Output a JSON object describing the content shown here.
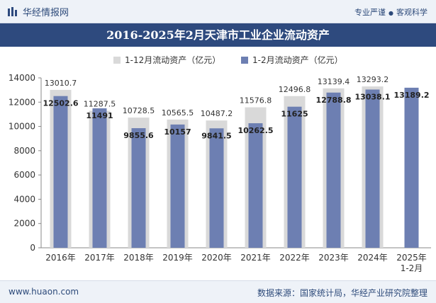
{
  "header": {
    "brand": "华经情报网",
    "tagline_left": "专业严谨",
    "tagline_right": "客观科学"
  },
  "title": "2016-2025年2月天津市工业企业流动资产",
  "footer": {
    "url": "www.huaon.com",
    "source": "数据来源：国家统计局，华经产业研究院整理"
  },
  "colors": {
    "header_bg": "#eef2f8",
    "title_bg": "#2e4a7e",
    "series_1": "#d9d9d9",
    "series_2": "#6d7fb2"
  },
  "chart_data": {
    "type": "bar",
    "categories": [
      "2016年",
      "2017年",
      "2018年",
      "2019年",
      "2020年",
      "2021年",
      "2022年",
      "2023年",
      "2024年",
      "2025年\n1-2月"
    ],
    "series": [
      {
        "name": "1-12月流动资产（亿元）",
        "values": [
          13010.7,
          11287.5,
          10728.5,
          10565.5,
          10487.2,
          11576.8,
          12496.8,
          13139.4,
          13293.2,
          null
        ],
        "labels": [
          "13010.7",
          "11287.5",
          "10728.5",
          "10565.5",
          "10487.2",
          "11576.8",
          "12496.8",
          "13139.4",
          "13293.2",
          ""
        ]
      },
      {
        "name": "1-2月流动资产（亿元）",
        "values": [
          12502.6,
          11491,
          9855.6,
          10157,
          9841.5,
          10262.5,
          11625,
          12788.8,
          13038.1,
          13189.2
        ],
        "labels": [
          "12502.6",
          "11491",
          "9855.6",
          "10157",
          "9841.5",
          "10262.5",
          "11625",
          "12788.8",
          "13038.1",
          "13189.2"
        ]
      }
    ],
    "yticks": [
      "0",
      "2000",
      "4000",
      "6000",
      "8000",
      "10000",
      "12000",
      "14000"
    ],
    "ylim": [
      0,
      14000
    ],
    "legend_position": "top-center",
    "grid": false
  }
}
